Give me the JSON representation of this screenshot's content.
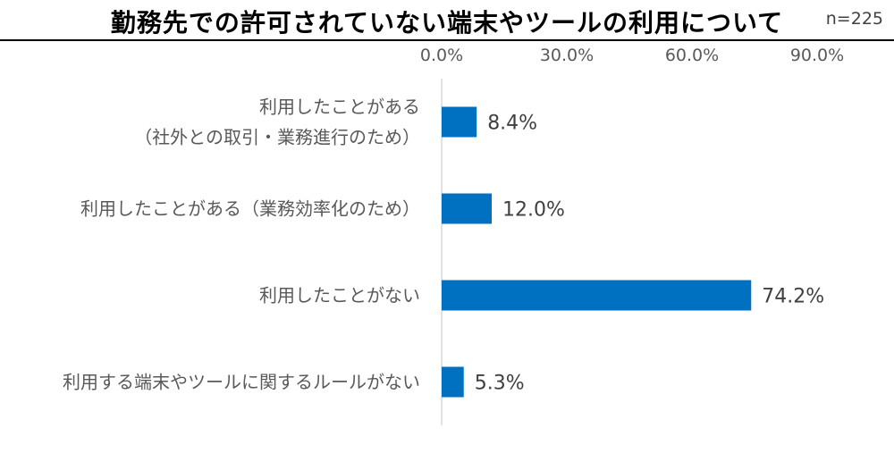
{
  "title": "勤務先での許可されていない端末やツールの利用について",
  "sample_size": "n=225",
  "chart_data": {
    "type": "bar",
    "orientation": "horizontal",
    "title": "勤務先での許可されていない端末やツールの利用について",
    "categories": [
      [
        "利用したことがある",
        "（社外との取引・業務進行のため）"
      ],
      [
        "利用したことがある（業務効率化のため）"
      ],
      [
        "利用したことがない"
      ],
      [
        "利用する端末やツールに関するルールがない"
      ]
    ],
    "values": [
      8.4,
      12.0,
      74.2,
      5.3
    ],
    "value_labels": [
      "8.4%",
      "12.0%",
      "74.2%",
      "5.3%"
    ],
    "xlim": [
      0,
      90
    ],
    "x_ticks": [
      0,
      30,
      60,
      90
    ],
    "x_tick_labels": [
      "0.0%",
      "30.0%",
      "60.0%",
      "90.0%"
    ],
    "axis_position": "top",
    "grid": false,
    "bar_color": "#0070C0"
  }
}
